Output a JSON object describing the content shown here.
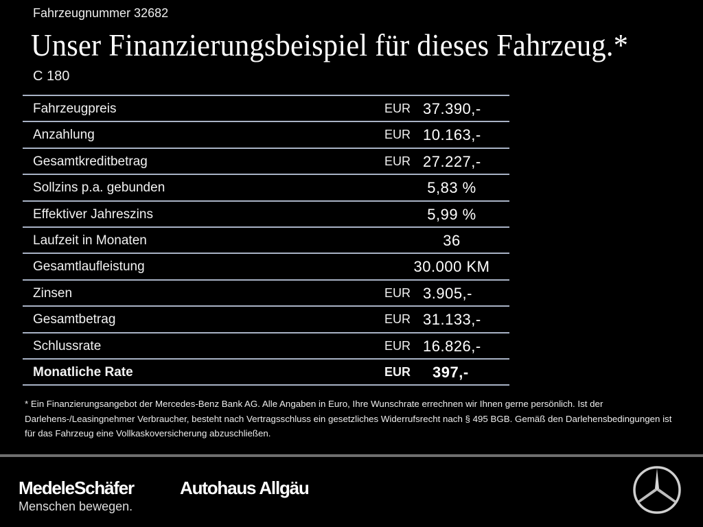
{
  "header": {
    "vehicle_number": "Fahrzeugnummer 32682",
    "title": "Unser Finanzierungsbeispiel für dieses Fahrzeug.*",
    "model": "C 180"
  },
  "table": {
    "rows": [
      {
        "label": "Fahrzeugpreis",
        "currency": "EUR",
        "value": "37.390,-"
      },
      {
        "label": "Anzahlung",
        "currency": "EUR",
        "value": "10.163,-"
      },
      {
        "label": "Gesamtkreditbetrag",
        "currency": "EUR",
        "value": "27.227,-"
      },
      {
        "label": "Sollzins p.a. gebunden",
        "currency": "",
        "value": "5,83 %"
      },
      {
        "label": "Effektiver Jahreszins",
        "currency": "",
        "value": "5,99 %"
      },
      {
        "label": "Laufzeit in Monaten",
        "currency": "",
        "value": "36"
      },
      {
        "label": "Gesamtlaufleistung",
        "currency": "",
        "value": "30.000 KM"
      },
      {
        "label": "Zinsen",
        "currency": "EUR",
        "value": "3.905,-"
      },
      {
        "label": "Gesamtbetrag",
        "currency": "EUR",
        "value": "31.133,-"
      },
      {
        "label": "Schlussrate",
        "currency": "EUR",
        "value": "16.826,-"
      },
      {
        "label": "Monatliche Rate",
        "currency": "EUR",
        "value": "397,-",
        "bold": true
      }
    ],
    "line_color": "#a9b3c6"
  },
  "footnote": "* Ein Finanzierungsangebot der Mercedes-Benz Bank AG. Alle Angaben in Euro, Ihre Wunschrate errechnen wir Ihnen gerne persönlich. Ist der Darlehens-/Leasingnehmer Verbraucher, besteht nach Vertragsschluss ein gesetzliches Widerrufsrecht nach § 495 BGB. Gemäß den Darlehensbedingungen ist für das Fahrzeug eine Vollkaskoversicherung abzuschließen.",
  "footer": {
    "brand1": "MedeleSchäfer",
    "brand2": "Autohaus Allgäu",
    "slogan": "Menschen bewegen.",
    "logo_icon": "mercedes-star-icon"
  }
}
